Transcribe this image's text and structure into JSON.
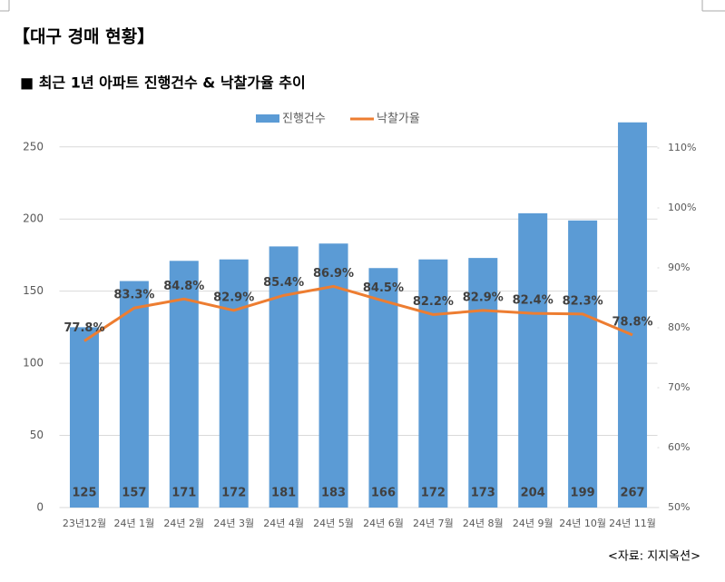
{
  "header": {
    "title": "【대구 경매 현황】",
    "subtitle": "■ 최근 1년 아파트 진행건수 & 낙찰가율 추이"
  },
  "chart_data": {
    "type": "bar-line",
    "categories": [
      "23년12월",
      "24년 1월",
      "24년 2월",
      "24년 3월",
      "24년 4월",
      "24년 5월",
      "24년 6월",
      "24년 7월",
      "24년 8월",
      "24년 9월",
      "24년 10월",
      "24년 11월"
    ],
    "series": [
      {
        "name": "진행건수",
        "type": "bar",
        "color": "#5b9bd5",
        "values": [
          125,
          157,
          171,
          172,
          181,
          183,
          166,
          172,
          173,
          204,
          199,
          267
        ]
      },
      {
        "name": "낙찰가율",
        "type": "line",
        "axis": "y2",
        "color": "#ed7d31",
        "values": [
          77.8,
          83.3,
          84.8,
          82.9,
          85.4,
          86.9,
          84.5,
          82.2,
          82.9,
          82.4,
          82.3,
          78.8
        ],
        "value_labels": [
          "77.8%",
          "83.3%",
          "84.8%",
          "82.9%",
          "85.4%",
          "86.9%",
          "84.5%",
          "82.2%",
          "82.9%",
          "82.4%",
          "82.3%",
          "78.8%"
        ]
      }
    ],
    "ylim": [
      0,
      270
    ],
    "yticks": [
      0,
      50,
      100,
      150,
      200,
      250
    ],
    "y2lim": [
      50,
      115
    ],
    "y2ticks": [
      {
        "value": 50,
        "label": "50%"
      },
      {
        "value": 60,
        "label": "60%"
      },
      {
        "value": 70,
        "label": "70%"
      },
      {
        "value": 80,
        "label": "80%"
      },
      {
        "value": 90,
        "label": "90%"
      },
      {
        "value": 100,
        "label": "100%"
      },
      {
        "value": 110,
        "label": "110%"
      }
    ],
    "legend": "top"
  },
  "footer": {
    "source": "<자료: 지지옥션>"
  }
}
